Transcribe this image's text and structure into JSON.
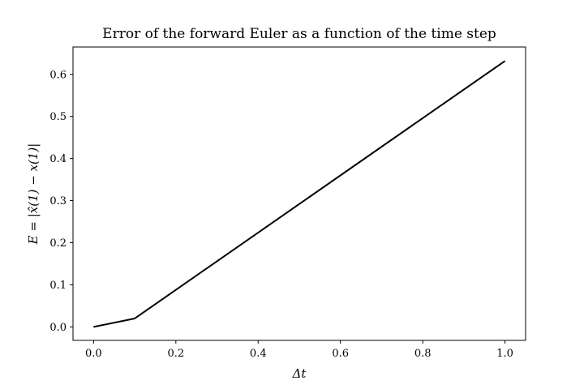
{
  "chart_data": {
    "type": "line",
    "title": "Error of the forward Euler as a function of the time step",
    "xlabel": "Δt",
    "ylabel": "E = |x̂(1) − x(1)|",
    "xlim": [
      -0.05,
      1.05
    ],
    "ylim": [
      -0.032,
      0.665
    ],
    "xticks": [
      0.0,
      0.2,
      0.4,
      0.6,
      0.8,
      1.0
    ],
    "xtick_labels": [
      "0.0",
      "0.2",
      "0.4",
      "0.6",
      "0.8",
      "1.0"
    ],
    "yticks": [
      0.0,
      0.1,
      0.2,
      0.3,
      0.4,
      0.5,
      0.6
    ],
    "ytick_labels": [
      "0.0",
      "0.1",
      "0.2",
      "0.3",
      "0.4",
      "0.5",
      "0.6"
    ],
    "grid": false,
    "series": [
      {
        "color": "#000000",
        "x": [
          0.0,
          0.1,
          1.0
        ],
        "y": [
          0.0,
          0.02,
          0.632
        ]
      }
    ]
  }
}
